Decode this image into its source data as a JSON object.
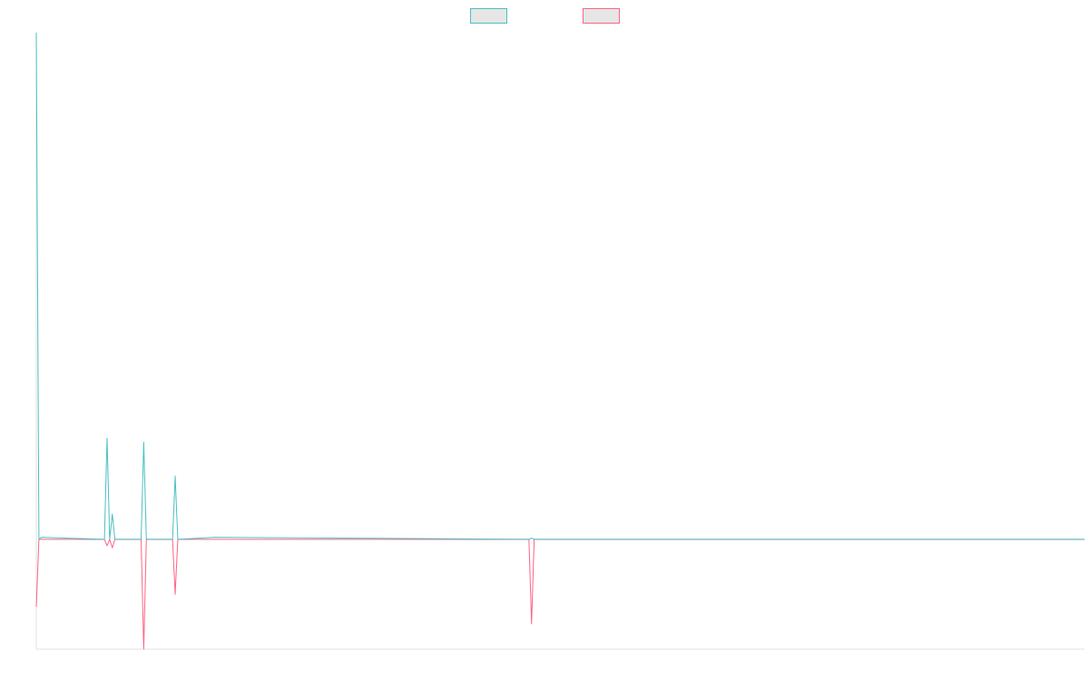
{
  "chart_data": {
    "type": "line",
    "title": "",
    "xlabel": "",
    "ylabel": "",
    "legend_position": "top-center",
    "grid": false,
    "x": [
      0,
      0.5,
      1,
      13,
      13.5,
      14,
      14.5,
      15,
      20,
      20.5,
      21,
      26,
      26.5,
      27,
      34,
      94,
      94.5,
      95,
      200
    ],
    "ylim": [
      -26,
      120
    ],
    "series": [
      {
        "name": "",
        "color": "#4bc0c0",
        "fill": "#e6e6e6",
        "values": [
          120,
          0,
          0.5,
          0,
          24,
          0,
          6,
          0,
          0,
          23,
          0,
          0,
          15,
          0,
          0.5,
          0,
          0.3,
          0,
          0
        ]
      },
      {
        "name": "",
        "color": "#ff6384",
        "fill": "#e6e6e6",
        "values": [
          -16,
          0,
          0,
          0,
          -1.5,
          0,
          -2,
          0,
          0,
          -26,
          0,
          0,
          -13,
          0,
          0,
          0,
          -20,
          0,
          0
        ]
      }
    ]
  }
}
